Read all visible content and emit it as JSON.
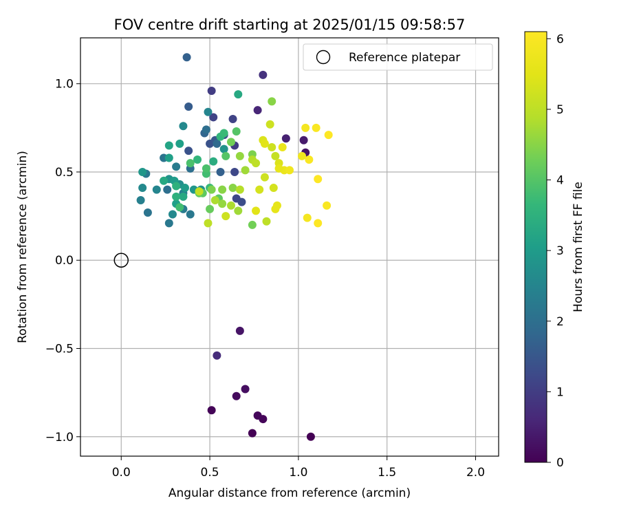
{
  "chart_data": {
    "type": "scatter",
    "title": "FOV centre drift starting at 2025/01/15 09:58:57",
    "xlabel": "Angular distance from reference (arcmin)",
    "ylabel": "Rotation from reference (arcmin)",
    "xlim": [
      -0.23,
      2.13
    ],
    "ylim": [
      -1.11,
      1.26
    ],
    "xticks": [
      0.0,
      0.5,
      1.0,
      1.5,
      2.0
    ],
    "xtick_labels": [
      "0.0",
      "0.5",
      "1.0",
      "1.5",
      "2.0"
    ],
    "yticks": [
      -1.0,
      -0.5,
      0.0,
      0.5,
      1.0
    ],
    "ytick_labels": [
      "−1.0",
      "−0.5",
      "0.0",
      "0.5",
      "1.0"
    ],
    "grid": true,
    "legend": {
      "location": "top-right",
      "entries": [
        "Reference platepar"
      ]
    },
    "colorbar": {
      "label": "Hours from first FF file",
      "colormap": "viridis",
      "range": [
        0,
        6.1
      ],
      "ticks": [
        0,
        1,
        2,
        3,
        4,
        5,
        6
      ],
      "tick_labels": [
        "0",
        "1",
        "2",
        "3",
        "4",
        "5",
        "6"
      ]
    },
    "reference_point": {
      "x": 0.0,
      "y": 0.0
    },
    "series": [
      {
        "points": [
          [
            0.74,
            -0.98,
            0.0
          ],
          [
            1.07,
            -1.0,
            0.0
          ],
          [
            0.51,
            -0.85,
            0.05
          ],
          [
            0.8,
            -0.9,
            0.08
          ],
          [
            0.77,
            -0.88,
            0.1
          ],
          [
            0.65,
            -0.77,
            0.15
          ],
          [
            0.7,
            -0.73,
            0.2
          ],
          [
            0.67,
            -0.4,
            0.3
          ],
          [
            0.54,
            -0.54,
            0.7
          ],
          [
            1.04,
            0.61,
            0.3
          ],
          [
            1.03,
            0.68,
            0.4
          ],
          [
            0.93,
            0.69,
            0.5
          ],
          [
            0.77,
            0.85,
            0.6
          ],
          [
            0.8,
            1.05,
            0.8
          ],
          [
            0.51,
            0.96,
            1.0
          ],
          [
            0.64,
            0.65,
            1.0
          ],
          [
            0.52,
            0.81,
            1.1
          ],
          [
            0.63,
            0.8,
            1.1
          ],
          [
            0.64,
            0.5,
            1.2
          ],
          [
            0.68,
            0.33,
            1.3
          ],
          [
            0.65,
            0.35,
            1.2
          ],
          [
            0.58,
            0.71,
            1.3
          ],
          [
            0.38,
            0.62,
            1.4
          ],
          [
            0.5,
            0.66,
            1.4
          ],
          [
            0.53,
            0.68,
            1.5
          ],
          [
            0.38,
            0.87,
            1.6
          ],
          [
            0.37,
            1.15,
            1.7
          ],
          [
            0.56,
            0.5,
            1.7
          ],
          [
            0.47,
            0.72,
            1.8
          ],
          [
            0.54,
            0.66,
            1.9
          ],
          [
            0.39,
            0.52,
            2.0
          ],
          [
            0.48,
            0.74,
            2.0
          ],
          [
            0.26,
            0.4,
            2.0
          ],
          [
            0.24,
            0.58,
            2.1
          ],
          [
            0.15,
            0.27,
            2.1
          ],
          [
            0.14,
            0.49,
            2.2
          ],
          [
            0.39,
            0.26,
            2.2
          ],
          [
            0.27,
            0.21,
            2.2
          ],
          [
            0.35,
            0.29,
            2.3
          ],
          [
            0.31,
            0.53,
            2.3
          ],
          [
            0.11,
            0.34,
            2.4
          ],
          [
            0.35,
            0.38,
            2.4
          ],
          [
            0.2,
            0.4,
            2.5
          ],
          [
            0.49,
            0.84,
            2.5
          ],
          [
            0.12,
            0.41,
            2.6
          ],
          [
            0.29,
            0.26,
            2.6
          ],
          [
            0.35,
            0.76,
            2.6
          ],
          [
            0.33,
            0.43,
            2.7
          ],
          [
            0.27,
            0.46,
            2.8
          ],
          [
            0.58,
            0.63,
            2.8
          ],
          [
            0.45,
            0.4,
            2.8
          ],
          [
            0.41,
            0.4,
            2.9
          ],
          [
            0.12,
            0.5,
            2.9
          ],
          [
            0.3,
            0.45,
            3.0
          ],
          [
            0.36,
            0.41,
            3.0
          ],
          [
            0.33,
            0.66,
            3.1
          ],
          [
            0.31,
            0.32,
            3.1
          ],
          [
            0.27,
            0.58,
            3.1
          ],
          [
            0.27,
            0.65,
            3.2
          ],
          [
            0.24,
            0.45,
            3.3
          ],
          [
            0.35,
            0.36,
            3.3
          ],
          [
            0.66,
            0.94,
            3.3
          ],
          [
            0.52,
            0.56,
            3.4
          ],
          [
            0.31,
            0.42,
            3.5
          ],
          [
            0.31,
            0.36,
            3.5
          ],
          [
            0.43,
            0.57,
            3.6
          ],
          [
            0.56,
            0.7,
            3.6
          ],
          [
            0.58,
            0.72,
            3.7
          ],
          [
            0.5,
            0.41,
            3.7
          ],
          [
            0.48,
            0.49,
            3.8
          ],
          [
            0.33,
            0.3,
            3.8
          ],
          [
            0.39,
            0.55,
            3.9
          ],
          [
            0.48,
            0.52,
            3.9
          ],
          [
            0.65,
            0.73,
            4.0
          ],
          [
            0.59,
            0.59,
            4.0
          ],
          [
            0.46,
            0.38,
            4.1
          ],
          [
            0.55,
            0.35,
            4.1
          ],
          [
            0.44,
            0.38,
            4.2
          ],
          [
            0.5,
            0.29,
            4.2
          ],
          [
            0.62,
            0.67,
            4.3
          ],
          [
            0.74,
            0.2,
            4.3
          ],
          [
            0.74,
            0.6,
            4.4
          ],
          [
            0.51,
            0.4,
            4.4
          ],
          [
            0.57,
            0.4,
            4.5
          ],
          [
            0.63,
            0.41,
            4.5
          ],
          [
            0.85,
            0.9,
            4.5
          ],
          [
            0.57,
            0.32,
            4.6
          ],
          [
            0.67,
            0.59,
            4.6
          ],
          [
            0.7,
            0.51,
            4.7
          ],
          [
            0.66,
            0.28,
            4.7
          ],
          [
            0.62,
            0.31,
            4.8
          ],
          [
            0.53,
            0.34,
            4.8
          ],
          [
            0.74,
            0.57,
            4.9
          ],
          [
            0.67,
            0.4,
            4.9
          ],
          [
            0.76,
            0.55,
            5.0
          ],
          [
            0.82,
            0.22,
            5.0
          ],
          [
            0.49,
            0.21,
            5.0
          ],
          [
            0.87,
            0.59,
            5.1
          ],
          [
            0.44,
            0.39,
            5.1
          ],
          [
            0.84,
            0.77,
            5.2
          ],
          [
            0.81,
            0.47,
            5.2
          ],
          [
            0.59,
            0.25,
            5.2
          ],
          [
            0.78,
            0.4,
            5.3
          ],
          [
            0.86,
            0.41,
            5.3
          ],
          [
            0.8,
            0.68,
            5.4
          ],
          [
            0.89,
            0.55,
            5.4
          ],
          [
            0.81,
            0.66,
            5.5
          ],
          [
            0.76,
            0.28,
            5.5
          ],
          [
            0.87,
            0.29,
            5.6
          ],
          [
            0.88,
            0.31,
            5.6
          ],
          [
            0.91,
            0.64,
            5.7
          ],
          [
            0.92,
            0.51,
            5.7
          ],
          [
            0.95,
            0.51,
            5.8
          ],
          [
            1.02,
            0.59,
            5.8
          ],
          [
            1.05,
            0.24,
            5.9
          ],
          [
            1.04,
            0.75,
            5.9
          ],
          [
            1.06,
            0.57,
            6.0
          ],
          [
            1.1,
            0.75,
            6.0
          ],
          [
            1.16,
            0.31,
            6.0
          ],
          [
            1.17,
            0.71,
            6.1
          ],
          [
            1.11,
            0.46,
            6.1
          ],
          [
            1.11,
            0.21,
            6.1
          ],
          [
            0.89,
            0.52,
            5.6
          ],
          [
            0.85,
            0.64,
            5.2
          ]
        ]
      }
    ]
  }
}
